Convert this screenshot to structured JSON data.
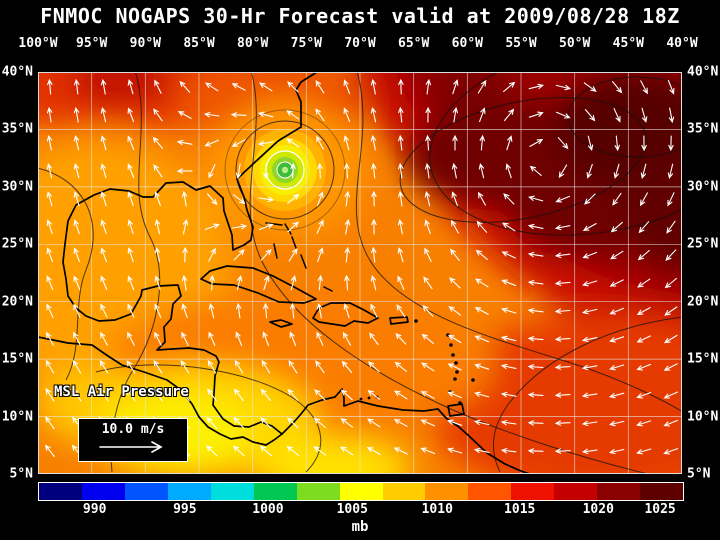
{
  "title": "FNMOC NOGAPS 30-Hr Forecast valid at 2009/08/28 18Z",
  "map": {
    "field_label": "MSL Air Pressure",
    "wind_scale_label": "10.0 m/s",
    "lon_labels": [
      "100°W",
      "95°W",
      "90°W",
      "85°W",
      "80°W",
      "75°W",
      "70°W",
      "65°W",
      "60°W",
      "55°W",
      "50°W",
      "45°W",
      "40°W"
    ],
    "lat_labels": [
      "40°N",
      "35°N",
      "30°N",
      "25°N",
      "20°N",
      "15°N",
      "10°N",
      "5°N"
    ],
    "hurricane": {
      "approx_lon": "77°W",
      "approx_lat": "32°N"
    }
  },
  "colorbar": {
    "unit": "mb",
    "ticks": [
      {
        "label": "990",
        "pct": 8.8
      },
      {
        "label": "995",
        "pct": 22.8
      },
      {
        "label": "1000",
        "pct": 35.7
      },
      {
        "label": "1005",
        "pct": 48.8
      },
      {
        "label": "1010",
        "pct": 62.0
      },
      {
        "label": "1015",
        "pct": 74.8
      },
      {
        "label": "1020",
        "pct": 87.0
      },
      {
        "label": "1025",
        "pct": 96.6
      }
    ],
    "colors": [
      "#00007f",
      "#0000ee",
      "#0055ff",
      "#00aaff",
      "#00dddd",
      "#00c853",
      "#7ddc1f",
      "#ffff00",
      "#ffcc00",
      "#ff9100",
      "#ff5500",
      "#ee1100",
      "#c40000",
      "#8b0000",
      "#5e0000"
    ]
  }
}
